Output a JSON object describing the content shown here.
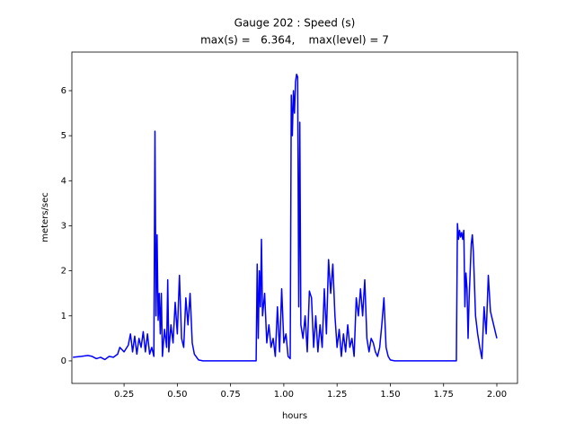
{
  "chart_data": {
    "type": "line",
    "title": "Gauge 202 : Speed (s)",
    "subtitle": "max(s) =   6.364,    max(level) = 7",
    "xlabel": "hours",
    "ylabel": "meters/sec",
    "color": "#0000ff",
    "x": [
      0.01,
      0.05,
      0.08,
      0.1,
      0.12,
      0.14,
      0.16,
      0.18,
      0.2,
      0.22,
      0.23,
      0.25,
      0.27,
      0.28,
      0.29,
      0.3,
      0.31,
      0.32,
      0.33,
      0.34,
      0.35,
      0.36,
      0.37,
      0.38,
      0.39,
      0.395,
      0.4,
      0.405,
      0.41,
      0.415,
      0.42,
      0.425,
      0.43,
      0.44,
      0.45,
      0.455,
      0.46,
      0.47,
      0.48,
      0.49,
      0.5,
      0.51,
      0.52,
      0.53,
      0.54,
      0.55,
      0.56,
      0.57,
      0.58,
      0.6,
      0.62,
      0.87,
      0.875,
      0.88,
      0.885,
      0.89,
      0.895,
      0.9,
      0.91,
      0.92,
      0.93,
      0.94,
      0.95,
      0.96,
      0.97,
      0.98,
      0.99,
      1.0,
      1.01,
      1.02,
      1.03,
      1.035,
      1.04,
      1.045,
      1.05,
      1.055,
      1.06,
      1.065,
      1.07,
      1.075,
      1.08,
      1.09,
      1.1,
      1.11,
      1.12,
      1.13,
      1.14,
      1.15,
      1.16,
      1.17,
      1.18,
      1.19,
      1.2,
      1.21,
      1.22,
      1.23,
      1.24,
      1.25,
      1.26,
      1.27,
      1.28,
      1.29,
      1.3,
      1.31,
      1.32,
      1.33,
      1.34,
      1.35,
      1.36,
      1.37,
      1.38,
      1.39,
      1.4,
      1.41,
      1.42,
      1.43,
      1.44,
      1.45,
      1.46,
      1.47,
      1.48,
      1.49,
      1.5,
      1.52,
      1.81,
      1.815,
      1.82,
      1.825,
      1.83,
      1.835,
      1.84,
      1.845,
      1.85,
      1.855,
      1.86,
      1.865,
      1.87,
      1.88,
      1.885,
      1.89,
      1.9,
      1.91,
      1.92,
      1.93,
      1.94,
      1.95,
      1.96,
      1.97,
      1.98,
      1.99,
      2.0
    ],
    "values": [
      0.08,
      0.1,
      0.12,
      0.1,
      0.05,
      0.08,
      0.03,
      0.1,
      0.08,
      0.15,
      0.3,
      0.2,
      0.35,
      0.6,
      0.2,
      0.55,
      0.15,
      0.5,
      0.3,
      0.65,
      0.2,
      0.6,
      0.15,
      0.3,
      0.1,
      5.1,
      1.0,
      2.8,
      0.9,
      1.5,
      0.6,
      1.5,
      0.1,
      0.7,
      0.3,
      1.8,
      0.2,
      0.8,
      0.4,
      1.3,
      0.6,
      1.9,
      0.5,
      0.3,
      1.4,
      0.8,
      1.5,
      0.4,
      0.15,
      0.02,
      0,
      0,
      2.15,
      0.5,
      2.0,
      1.2,
      2.7,
      1.0,
      1.5,
      0.4,
      0.8,
      0.3,
      0.5,
      0.1,
      1.2,
      0.2,
      1.6,
      0.4,
      0.6,
      0.1,
      0.05,
      5.9,
      5.0,
      6.0,
      5.5,
      6.2,
      6.364,
      6.3,
      1.2,
      5.3,
      0.8,
      0.5,
      1.0,
      0.2,
      1.55,
      1.4,
      0.3,
      1.0,
      0.2,
      0.8,
      0.3,
      1.6,
      0.6,
      2.25,
      1.5,
      2.15,
      1.0,
      0.3,
      0.7,
      0.1,
      0.6,
      0.2,
      0.8,
      0.3,
      0.5,
      0.1,
      1.4,
      1.0,
      1.6,
      1.0,
      1.8,
      0.5,
      0.2,
      0.5,
      0.4,
      0.2,
      0.1,
      0.3,
      0.8,
      1.4,
      0.3,
      0.1,
      0.02,
      0,
      0,
      3.05,
      2.7,
      2.9,
      2.75,
      2.85,
      2.7,
      2.9,
      1.2,
      1.95,
      1.6,
      0.5,
      1.4,
      2.6,
      2.8,
      2.4,
      1.0,
      0.6,
      0.3,
      0.05,
      1.2,
      0.6,
      1.9,
      1.1,
      0.9,
      0.7,
      0.5
    ],
    "xlim": [
      0.005,
      2.097
    ],
    "ylim": [
      -0.5,
      6.857
    ],
    "xticks": [
      0.25,
      {
        "value": 0.5,
        "label": "0.50"
      },
      0.75,
      {
        "value": 1.0,
        "label": "1.00"
      },
      1.25,
      {
        "value": 1.5,
        "label": "1.50"
      },
      1.75,
      {
        "value": 2.0,
        "label": "2.00"
      }
    ],
    "yticks": [
      0,
      1,
      2,
      3,
      4,
      5,
      6
    ]
  }
}
